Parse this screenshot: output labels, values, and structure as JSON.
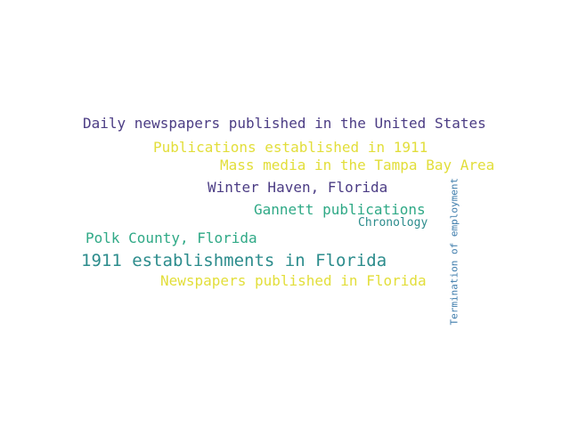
{
  "word_cloud": {
    "words": [
      {
        "text": "Daily newspapers published in the United States",
        "color": "#4b3c84"
      },
      {
        "text": "Publications established in 1911",
        "color": "#e2de3a"
      },
      {
        "text": "Mass media in the Tampa Bay Area",
        "color": "#e2de3a"
      },
      {
        "text": "Winter Haven, Florida",
        "color": "#4b3c84"
      },
      {
        "text": "Gannett publications",
        "color": "#2fa986"
      },
      {
        "text": "Chronology",
        "color": "#2c8c8c"
      },
      {
        "text": "Polk County, Florida",
        "color": "#2fa986"
      },
      {
        "text": "1911 establishments in Florida",
        "color": "#2c8c8c"
      },
      {
        "text": "Newspapers published in Florida",
        "color": "#e2de3a"
      },
      {
        "text": "Termination of employment",
        "color": "#3c7bab"
      }
    ]
  }
}
